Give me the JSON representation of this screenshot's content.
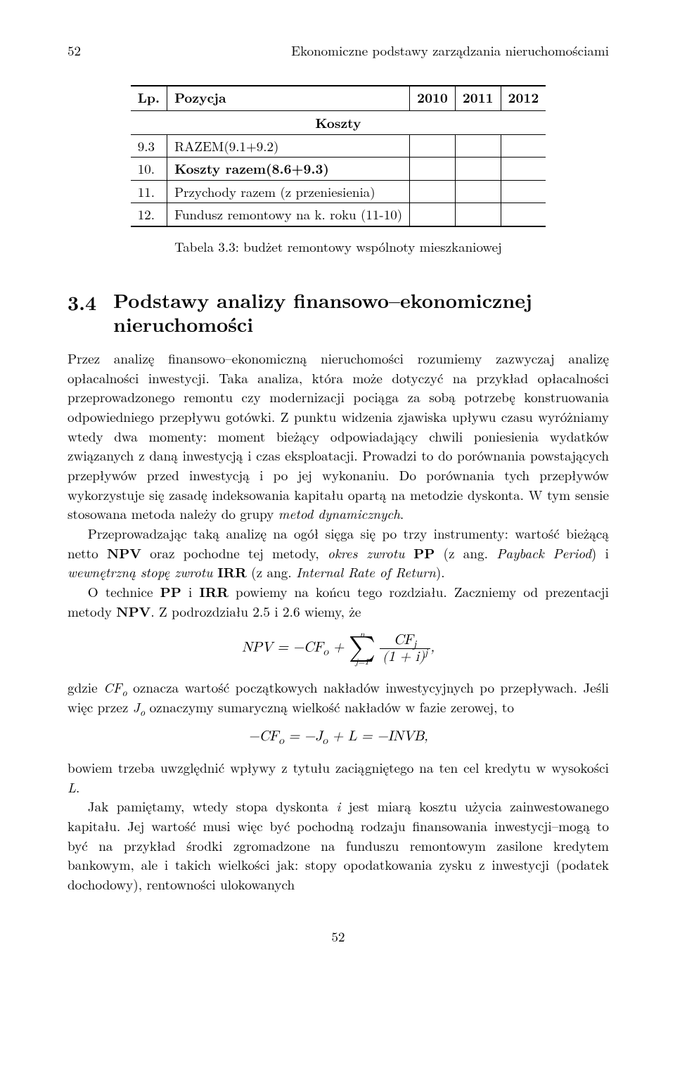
{
  "header": {
    "page_number_top": "52",
    "chapter_title": "Ekonomiczne podstawy zarządzania nieruchomościami"
  },
  "table": {
    "columns": {
      "lp": "Lp.",
      "pozycja": "Pozycja",
      "y2010": "2010",
      "y2011": "2011",
      "y2012": "2012"
    },
    "koszty_label": "Koszty",
    "rows": [
      {
        "lp": "9.3",
        "pozycja": "RAZEM(9.1+9.2)"
      },
      {
        "lp": "10.",
        "pozycja": "Koszty razem(8.6+9.3)",
        "bold": true
      },
      {
        "lp": "11.",
        "pozycja": "Przychody razem (z przeniesienia)"
      },
      {
        "lp": "12.",
        "pozycja": "Fundusz remontowy na k. roku (11-10)"
      }
    ],
    "caption": "Tabela 3.3: budżet remontowy wspólnoty mieszkaniowej"
  },
  "section": {
    "number": "3.4",
    "title_line1": "Podstawy analizy finansowo–ekonomicznej",
    "title_line2": "nieruchomości"
  },
  "paragraphs": {
    "p1": "Przez analizę finansowo–ekonomiczną nieruchomości rozumiemy zazwyczaj analizę opłacalności inwestycji. Taka analiza, która może dotyczyć na przykład opłacalności przeprowadzonego remontu czy modernizacji pociąga za sobą potrzebę konstruowania odpowiedniego przepływu gotówki. Z punktu widzenia zjawiska upływu czasu wyróżniamy wtedy dwa momenty: moment bieżący odpowiadający chwili poniesienia wydatków związanych z daną inwestycją i czas eksploatacji. Prowadzi to do porównania powstających przepływów przed inwestycją i po jej wykonaniu. Do porównania tych przepływów wykorzystuje się zasadę indeksowania kapitału opartą na metodzie dyskonta. W tym sensie stosowana metoda należy do grupy ",
    "p1_em": "metod dynamicznych",
    "p1_end": ".",
    "p2a": "Przeprowadzając taką analizę na ogół sięga się po trzy instrumenty: wartość bieżącą netto ",
    "p2_npv": "NPV",
    "p2b": " oraz pochodne tej metody, ",
    "p2_em1": "okres zwrotu ",
    "p2_pp": "PP",
    "p2c": " (z ang. ",
    "p2_em2": "Payback Period",
    "p2d": ") i ",
    "p2_em3": "wewnętrzną stopę zwrotu ",
    "p2_irr": "IRR",
    "p2e": " (z ang. ",
    "p2_em4": "Internal Rate of Return",
    "p2f": ").",
    "p3a": "O technice ",
    "p3_pp": "PP",
    "p3b": " i ",
    "p3_irr": "IRR",
    "p3c": " powiemy na końcu tego rozdziału. Zaczniemy od prezentacji metody ",
    "p3_npv": "NPV",
    "p3d": ". Z podrozdziału 2.5 i 2.6 wiemy, że",
    "formula1": {
      "lhs": "NPV = −CF",
      "lhs_sub": "o",
      "plus": " + ",
      "sum_top": "n",
      "sum_bot": "j=1",
      "frac_num": "CF",
      "frac_num_sub": "j",
      "frac_den": "(1 + i)",
      "frac_den_sup": "j",
      "trail": ","
    },
    "p4a": "gdzie ",
    "p4_cf": "CF",
    "p4_cf_sub": "o",
    "p4b": " oznacza wartość początkowych nakładów inwestycyjnych po przepływach. Jeśli więc przez ",
    "p4_j": "J",
    "p4_j_sub": "o",
    "p4c": " oznaczymy sumaryczną wielkość nakładów w fazie zerowej, to",
    "formula2": "−CF",
    "formula2_sub1": "o",
    "formula2_mid": " = −J",
    "formula2_sub2": "o",
    "formula2_end": " + L = −INVB,",
    "p5": "bowiem trzeba uwzględnić wpływy z tytułu zaciągniętego na ten cel kredytu w wysokości ",
    "p5_L": "L",
    "p5_end": ".",
    "p6a": "Jak pamiętamy, wtedy stopa dyskonta ",
    "p6_i": "i",
    "p6b": " jest miarą kosztu użycia zainwestowanego kapitału. Jej wartość musi więc być pochodną rodzaju finansowania inwestycji–mogą to być na przykład środki zgromadzone na funduszu remontowym zasilone kredytem bankowym, ale i takich wielkości jak: stopy opodatkowania zysku z inwestycji (podatek dochodowy), rentowności ulokowanych"
  },
  "footer": {
    "page_number_bottom": "52"
  }
}
